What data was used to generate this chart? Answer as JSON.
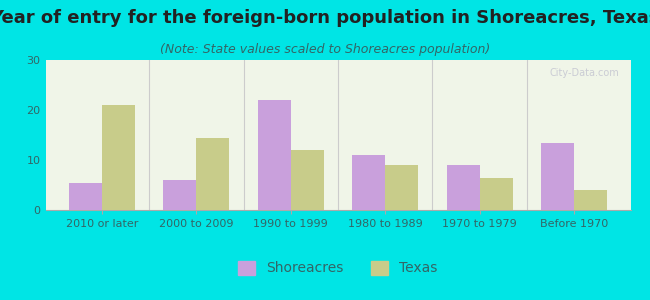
{
  "title": "Year of entry for the foreign-born population in Shoreacres, Texas",
  "subtitle": "(Note: State values scaled to Shoreacres population)",
  "categories": [
    "2010 or later",
    "2000 to 2009",
    "1990 to 1999",
    "1980 to 1989",
    "1970 to 1979",
    "Before 1970"
  ],
  "shoreacres_values": [
    5.5,
    6.0,
    22.0,
    11.0,
    9.0,
    13.5
  ],
  "texas_values": [
    21.0,
    14.5,
    12.0,
    9.0,
    6.5,
    4.0
  ],
  "shoreacres_color": "#c9a0dc",
  "texas_color": "#c8cc8a",
  "background_outer": "#00e5e5",
  "background_plot": "#f0f5e8",
  "ylim": [
    0,
    30
  ],
  "yticks": [
    0,
    10,
    20,
    30
  ],
  "bar_width": 0.35,
  "title_fontsize": 13,
  "subtitle_fontsize": 9,
  "tick_fontsize": 8,
  "legend_fontsize": 10
}
